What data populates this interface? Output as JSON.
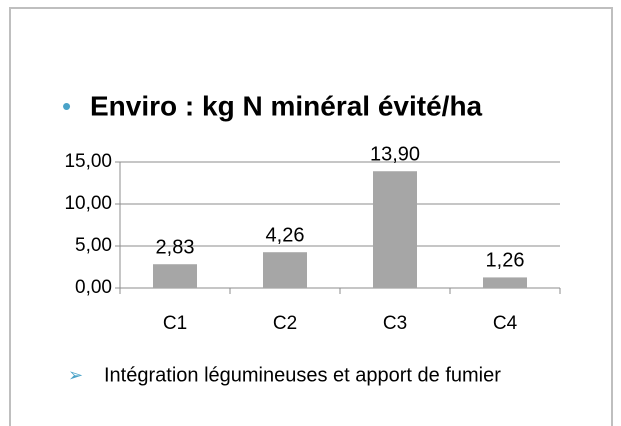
{
  "chart_data": {
    "type": "bar",
    "title": "Enviro : kg N minéral évité/ha",
    "categories": [
      "C1",
      "C2",
      "C3",
      "C4"
    ],
    "values": [
      2.83,
      4.26,
      13.9,
      1.26
    ],
    "value_labels": [
      "2,83",
      "4,26",
      "13,90",
      "1,26"
    ],
    "color": "#a6a6a6",
    "ylim": [
      0,
      15
    ],
    "yticks": [
      {
        "value": 0,
        "label": "0,00"
      },
      {
        "value": 5,
        "label": "5,00"
      },
      {
        "value": 10,
        "label": "10,00"
      },
      {
        "value": 15,
        "label": "15,00"
      }
    ],
    "grid": true,
    "annotations": [
      "Intégration légumineuses et apport de fumier"
    ]
  }
}
